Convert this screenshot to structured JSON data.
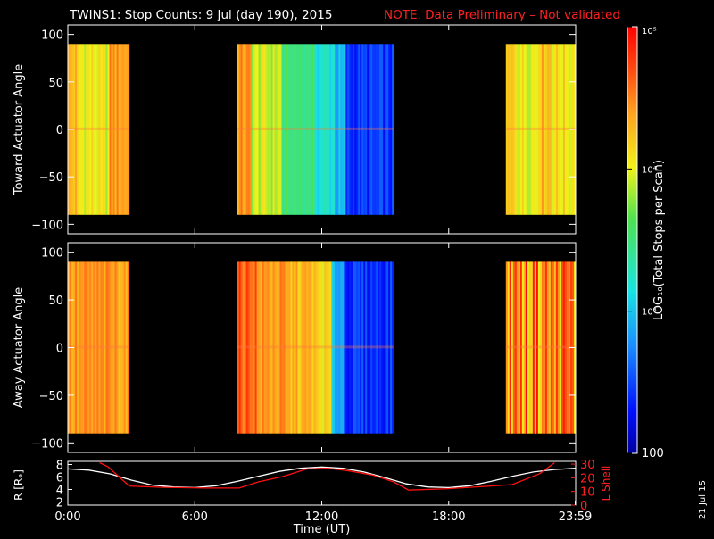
{
  "title": {
    "main": "TWINS1: Stop Counts:  9 Jul (day 190), 2015",
    "note": "NOTE. Data Preliminary – Not validated",
    "note_color": "#ff2020"
  },
  "colorbar": {
    "label": "LOG₁₀(Total Stops per Scan)",
    "ticks": [
      "10⁵",
      "10⁴",
      "10³",
      "100"
    ],
    "tick_values": [
      100000,
      10000,
      1000,
      100
    ],
    "scale": "log",
    "colormap": "rainbow (blue→cyan→green→yellow→orange→red)"
  },
  "stamp": "21 Jul 15",
  "chart_data": [
    {
      "type": "heatmap",
      "panel": "top",
      "ylabel": "Toward Actuator Angle",
      "ylim": [
        -110,
        110
      ],
      "y_ticks": [
        "100",
        "50",
        "0",
        "−50",
        "−100"
      ],
      "y_tick_values": [
        100,
        50,
        0,
        -50,
        -100
      ],
      "data_ylim": [
        -90,
        90
      ],
      "x_hours_range": [
        0,
        24
      ],
      "segments": [
        {
          "start_h": 0.0,
          "end_h": 2.9,
          "profile": "top_a"
        },
        {
          "start_h": 8.0,
          "end_h": 15.4,
          "profile": "top_b"
        },
        {
          "start_h": 20.7,
          "end_h": 24.0,
          "profile": "top_c"
        }
      ]
    },
    {
      "type": "heatmap",
      "panel": "middle",
      "ylabel": "Away Actuator Angle",
      "ylim": [
        -110,
        110
      ],
      "y_ticks": [
        "100",
        "50",
        "0",
        "−50",
        "−100"
      ],
      "y_tick_values": [
        100,
        50,
        0,
        -50,
        -100
      ],
      "data_ylim": [
        -90,
        90
      ],
      "x_hours_range": [
        0,
        24
      ],
      "segments": [
        {
          "start_h": 0.0,
          "end_h": 2.9,
          "profile": "mid_a"
        },
        {
          "start_h": 8.0,
          "end_h": 15.4,
          "profile": "mid_b"
        },
        {
          "start_h": 20.7,
          "end_h": 24.0,
          "profile": "mid_c"
        }
      ]
    },
    {
      "type": "line",
      "panel": "bottom",
      "ylabel_left": "R [Rₑ]",
      "ylabel_right": "L Shell",
      "ylim_left": [
        1.5,
        8.5
      ],
      "ylim_right": [
        0,
        32
      ],
      "left_ticks": [
        "8",
        "6",
        "4",
        "2"
      ],
      "left_tick_values": [
        8,
        6,
        4,
        2
      ],
      "right_ticks": [
        "30",
        "20",
        "10",
        "0"
      ],
      "right_tick_values": [
        30,
        20,
        10,
        0
      ],
      "xlabel": "Time (UT)",
      "x_ticks": [
        "0:00",
        "6:00",
        "12:00",
        "18:00",
        "23:59"
      ],
      "x_tick_hours": [
        0,
        6,
        12,
        18,
        23.98
      ],
      "series": [
        {
          "name": "R [Rₑ]",
          "axis": "left",
          "color": "#ffffff",
          "x_hours": [
            0,
            1,
            2,
            3,
            4,
            5,
            6,
            7,
            8,
            9,
            10,
            11,
            12,
            13,
            14,
            15,
            16,
            17,
            18,
            19,
            20,
            21,
            22,
            23,
            24
          ],
          "values": [
            7.3,
            7.1,
            6.5,
            5.5,
            4.7,
            4.4,
            4.3,
            4.6,
            5.3,
            6.1,
            6.9,
            7.4,
            7.6,
            7.4,
            6.8,
            5.9,
            4.9,
            4.4,
            4.3,
            4.6,
            5.3,
            6.1,
            6.8,
            7.2,
            7.4
          ]
        },
        {
          "name": "L Shell",
          "axis": "right",
          "color": "#ff1010",
          "x_hours": [
            1.5,
            1.9,
            2.9,
            4.5,
            6.5,
            8.1,
            9.0,
            10.2,
            11.3,
            12.3,
            13.3,
            14.4,
            15.4,
            16.1,
            18.0,
            20.0,
            21.0,
            22.3,
            23.0
          ],
          "values": [
            31,
            28,
            14,
            13,
            12.5,
            12.5,
            17,
            21,
            26.5,
            27,
            25,
            22,
            17,
            11,
            12,
            14,
            15,
            23,
            31
          ]
        }
      ]
    }
  ]
}
